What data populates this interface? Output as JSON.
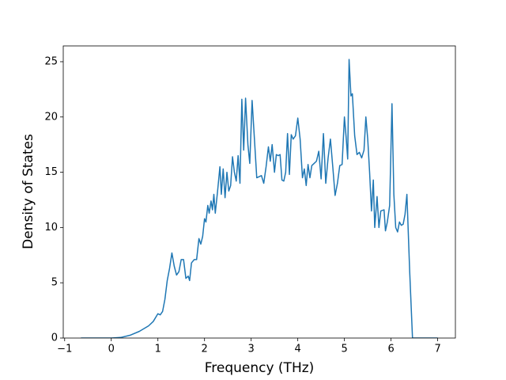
{
  "chart_data": {
    "type": "line",
    "xlabel": "Frequency (THz)",
    "ylabel": "Density of States",
    "xlim": [
      -1.03,
      7.38
    ],
    "ylim": [
      0,
      26.43
    ],
    "xticks": [
      {
        "value": -1,
        "label": "−1"
      },
      0,
      1,
      2,
      3,
      4,
      5,
      6,
      7
    ],
    "yticks": [
      0,
      5,
      10,
      15,
      20,
      25
    ],
    "grid": false,
    "series": [
      {
        "color": "#1f77b4",
        "x": [
          -0.65,
          0,
          0.2,
          0.4,
          0.6,
          0.8,
          0.9,
          1.0,
          1.05,
          1.1,
          1.15,
          1.2,
          1.25,
          1.3,
          1.35,
          1.4,
          1.45,
          1.5,
          1.55,
          1.6,
          1.65,
          1.68,
          1.72,
          1.78,
          1.83,
          1.88,
          1.92,
          1.96,
          2.0,
          2.03,
          2.07,
          2.1,
          2.14,
          2.17,
          2.2,
          2.23,
          2.28,
          2.33,
          2.36,
          2.4,
          2.44,
          2.48,
          2.52,
          2.56,
          2.6,
          2.64,
          2.68,
          2.72,
          2.76,
          2.8,
          2.84,
          2.88,
          2.93,
          2.97,
          3.02,
          3.07,
          3.12,
          3.17,
          3.22,
          3.27,
          3.32,
          3.37,
          3.41,
          3.45,
          3.5,
          3.54,
          3.58,
          3.62,
          3.66,
          3.7,
          3.74,
          3.78,
          3.82,
          3.86,
          3.9,
          3.95,
          4.0,
          4.05,
          4.1,
          4.14,
          4.18,
          4.22,
          4.26,
          4.3,
          4.35,
          4.4,
          4.45,
          4.5,
          4.55,
          4.6,
          4.65,
          4.7,
          4.75,
          4.8,
          4.85,
          4.9,
          4.95,
          5.0,
          5.04,
          5.07,
          5.1,
          5.14,
          5.17,
          5.22,
          5.27,
          5.32,
          5.37,
          5.42,
          5.46,
          5.5,
          5.54,
          5.58,
          5.62,
          5.65,
          5.7,
          5.74,
          5.78,
          5.85,
          5.88,
          5.92,
          5.97,
          6.02,
          6.06,
          6.1,
          6.14,
          6.18,
          6.22,
          6.26,
          6.3,
          6.34,
          6.4,
          6.46,
          7.0
        ],
        "values": [
          0,
          0,
          0.05,
          0.25,
          0.6,
          1.1,
          1.5,
          2.2,
          2.1,
          2.4,
          3.5,
          5.2,
          6.3,
          7.7,
          6.5,
          5.7,
          6.0,
          7.1,
          7.1,
          5.4,
          5.6,
          5.2,
          6.8,
          7.1,
          7.1,
          9.0,
          8.5,
          9.2,
          10.8,
          10.5,
          12.0,
          11.3,
          12.4,
          11.6,
          13.0,
          11.3,
          13.3,
          15.5,
          13.0,
          15.3,
          12.7,
          15.0,
          13.3,
          13.8,
          16.4,
          15.0,
          14.2,
          16.5,
          14.0,
          21.6,
          17.0,
          21.7,
          17.5,
          15.8,
          21.5,
          18.0,
          14.5,
          14.6,
          14.7,
          14.0,
          15.5,
          17.3,
          16.0,
          17.5,
          15.0,
          16.6,
          16.5,
          16.6,
          14.3,
          14.2,
          15.0,
          18.5,
          14.8,
          18.4,
          18.0,
          18.3,
          19.9,
          18.0,
          14.5,
          15.3,
          13.8,
          15.7,
          14.5,
          15.6,
          15.8,
          16.0,
          16.9,
          14.4,
          18.5,
          14.0,
          16.3,
          18.0,
          15.5,
          12.9,
          14.0,
          15.6,
          15.7,
          20.0,
          18.0,
          16.2,
          25.2,
          21.9,
          22.1,
          18.3,
          16.6,
          16.8,
          16.3,
          17.0,
          20.0,
          18.0,
          15.0,
          11.5,
          14.3,
          10.0,
          12.8,
          10.0,
          11.5,
          11.6,
          9.7,
          10.5,
          12.0,
          21.2,
          13.0,
          10.0,
          9.6,
          10.5,
          10.2,
          10.3,
          11.2,
          13.0,
          6.0,
          0,
          0
        ]
      }
    ]
  }
}
